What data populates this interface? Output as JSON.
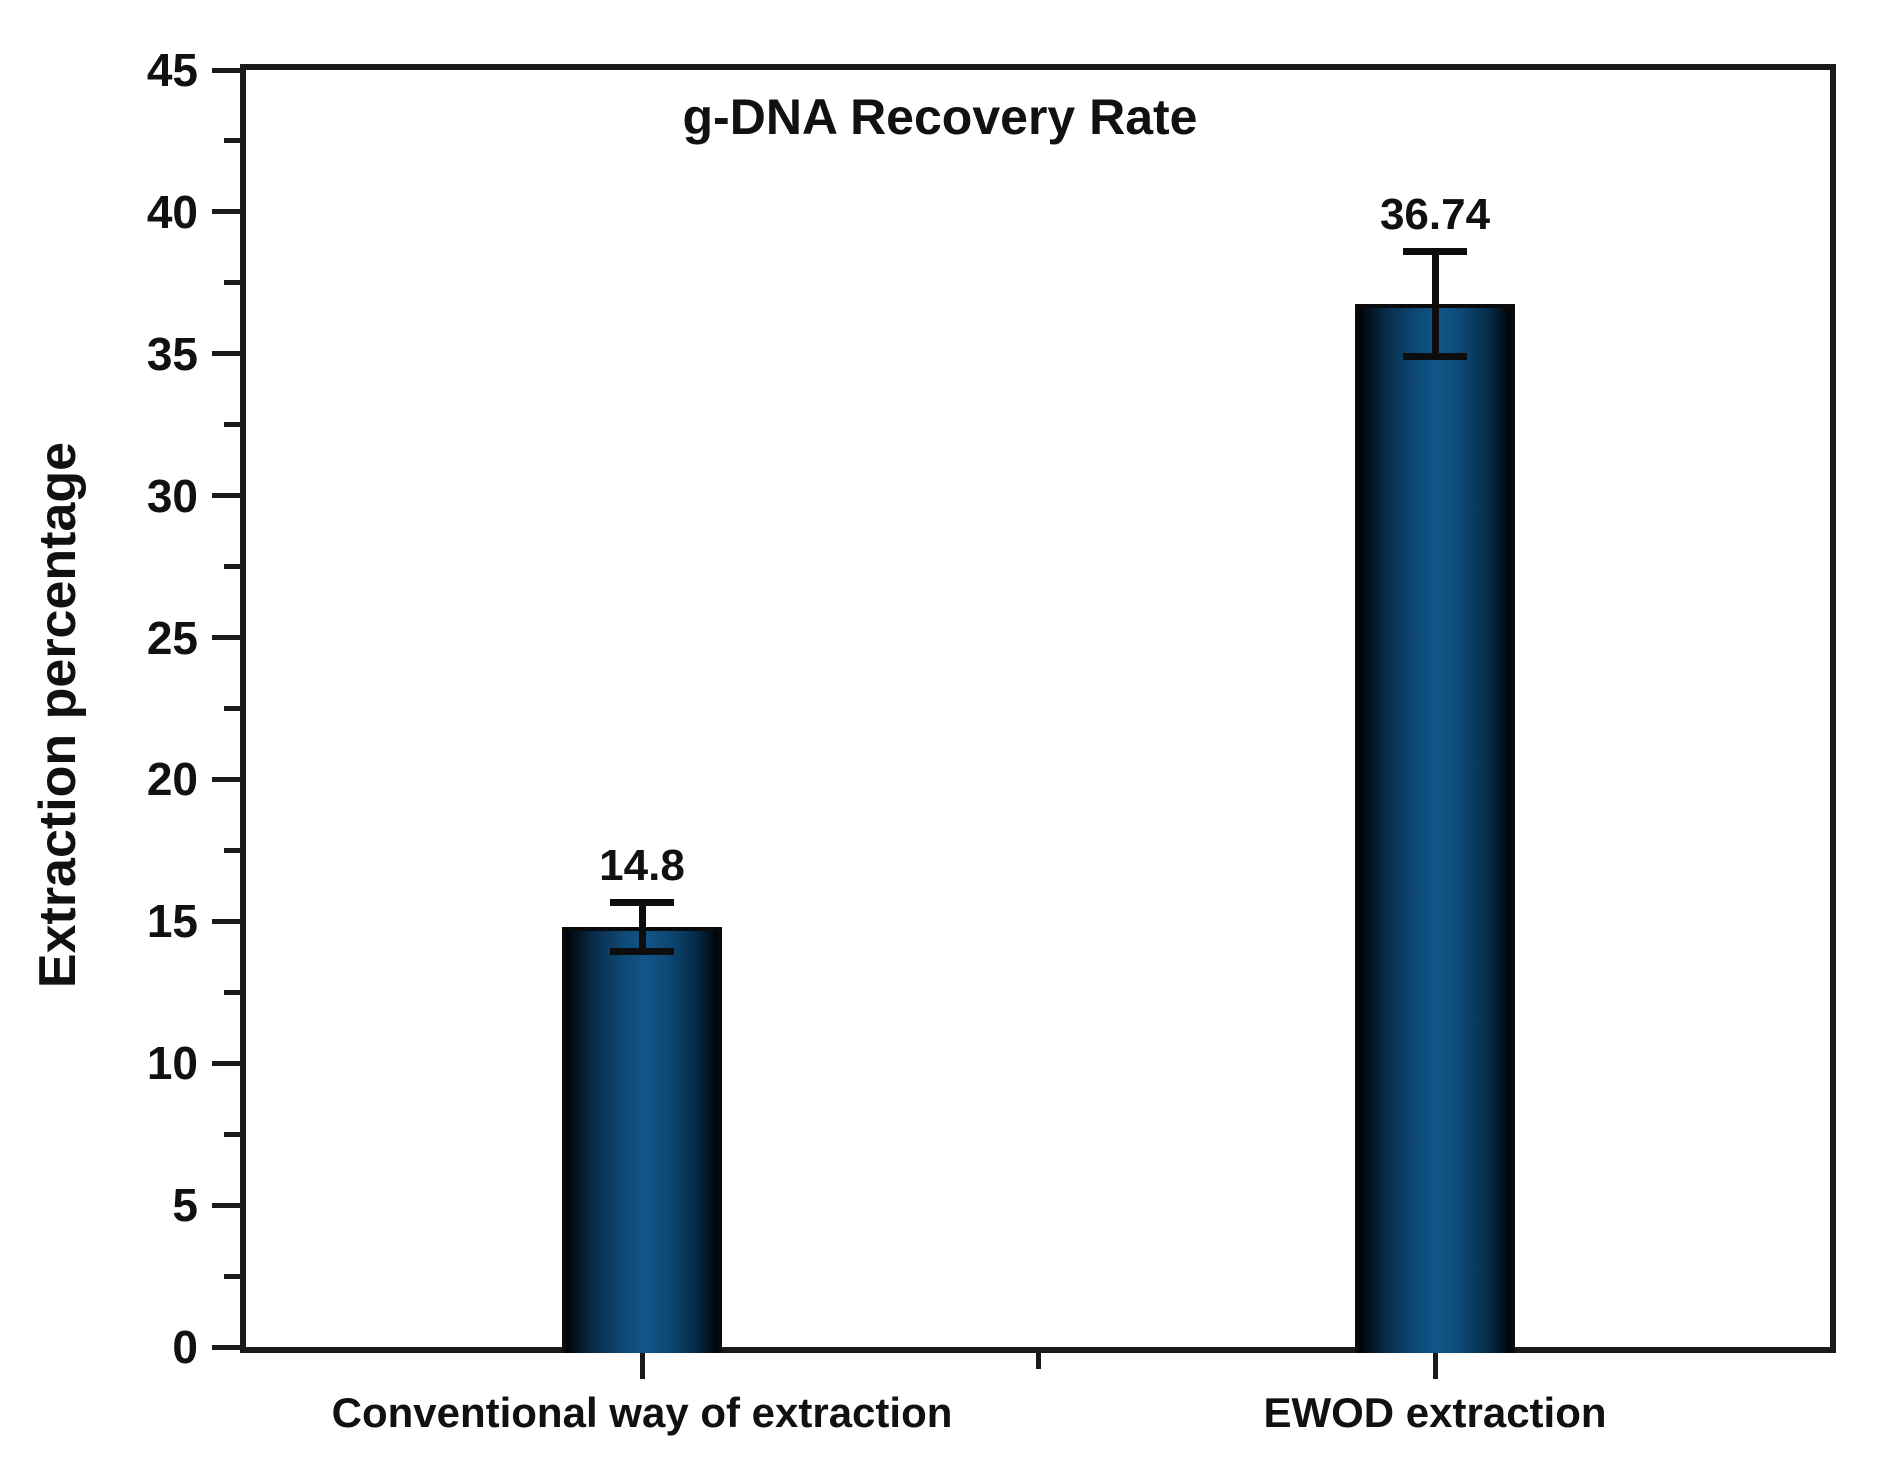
{
  "chart_data": {
    "type": "bar",
    "title": "g-DNA Recovery Rate",
    "ylabel": "Extraction percentage",
    "xlabel": "",
    "categories": [
      "Conventional way of extraction",
      "EWOD extraction"
    ],
    "values": [
      14.8,
      36.74
    ],
    "value_labels": [
      "14.8",
      "36.74"
    ],
    "errors": [
      0.85,
      1.85
    ],
    "ylim": [
      0,
      45
    ],
    "y_major_step": 5,
    "y_minor_step": 2.5,
    "y_tick_labels": [
      "0",
      "5",
      "10",
      "15",
      "20",
      "25",
      "30",
      "35",
      "40",
      "45"
    ],
    "grid": false,
    "legend_position": "none",
    "bar_mid_color": "#115589",
    "bar_edge_color": "#000407",
    "frame_color": "#1a1a1a",
    "text_color": "#111111",
    "background_color": "#ffffff"
  }
}
